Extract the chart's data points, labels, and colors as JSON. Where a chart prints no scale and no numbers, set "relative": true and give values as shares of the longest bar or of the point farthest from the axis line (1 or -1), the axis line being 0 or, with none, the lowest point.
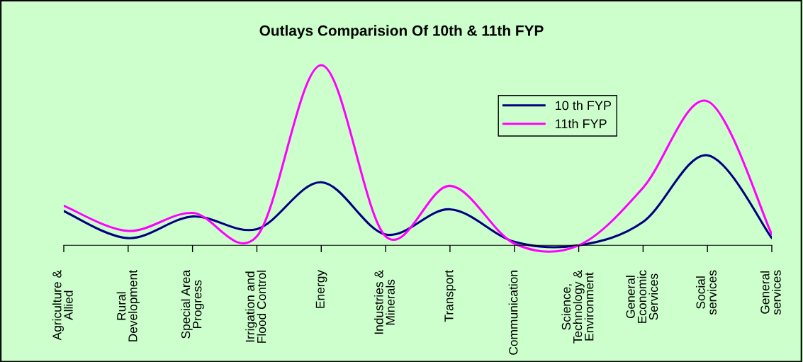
{
  "chart_data": {
    "type": "line",
    "title": "Outlays Comparision Of 10th & 11th FYP",
    "relative": true,
    "categories": [
      "Agriculture & Allied",
      "Rural Development",
      "Special Area Progress",
      "Irrigation and Flood Control",
      "Energy",
      "Industries & Minerals",
      "Transport",
      "Communication",
      "Science, Technology & Environment",
      "General Economic Services",
      "Social services",
      "General services"
    ],
    "series": [
      {
        "name": "10 th FYP",
        "color": "#000080",
        "values": [
          0.19,
          0.04,
          0.16,
          0.09,
          0.35,
          0.06,
          0.2,
          0.02,
          0.0,
          0.13,
          0.5,
          0.04
        ]
      },
      {
        "name": "11th FYP",
        "color": "#ff00ff",
        "values": [
          0.22,
          0.08,
          0.18,
          0.05,
          1.0,
          0.05,
          0.33,
          0.01,
          0.0,
          0.32,
          0.8,
          0.06
        ]
      }
    ],
    "legend": "top right",
    "grid": false,
    "marker": "none",
    "line_style": "solid"
  }
}
